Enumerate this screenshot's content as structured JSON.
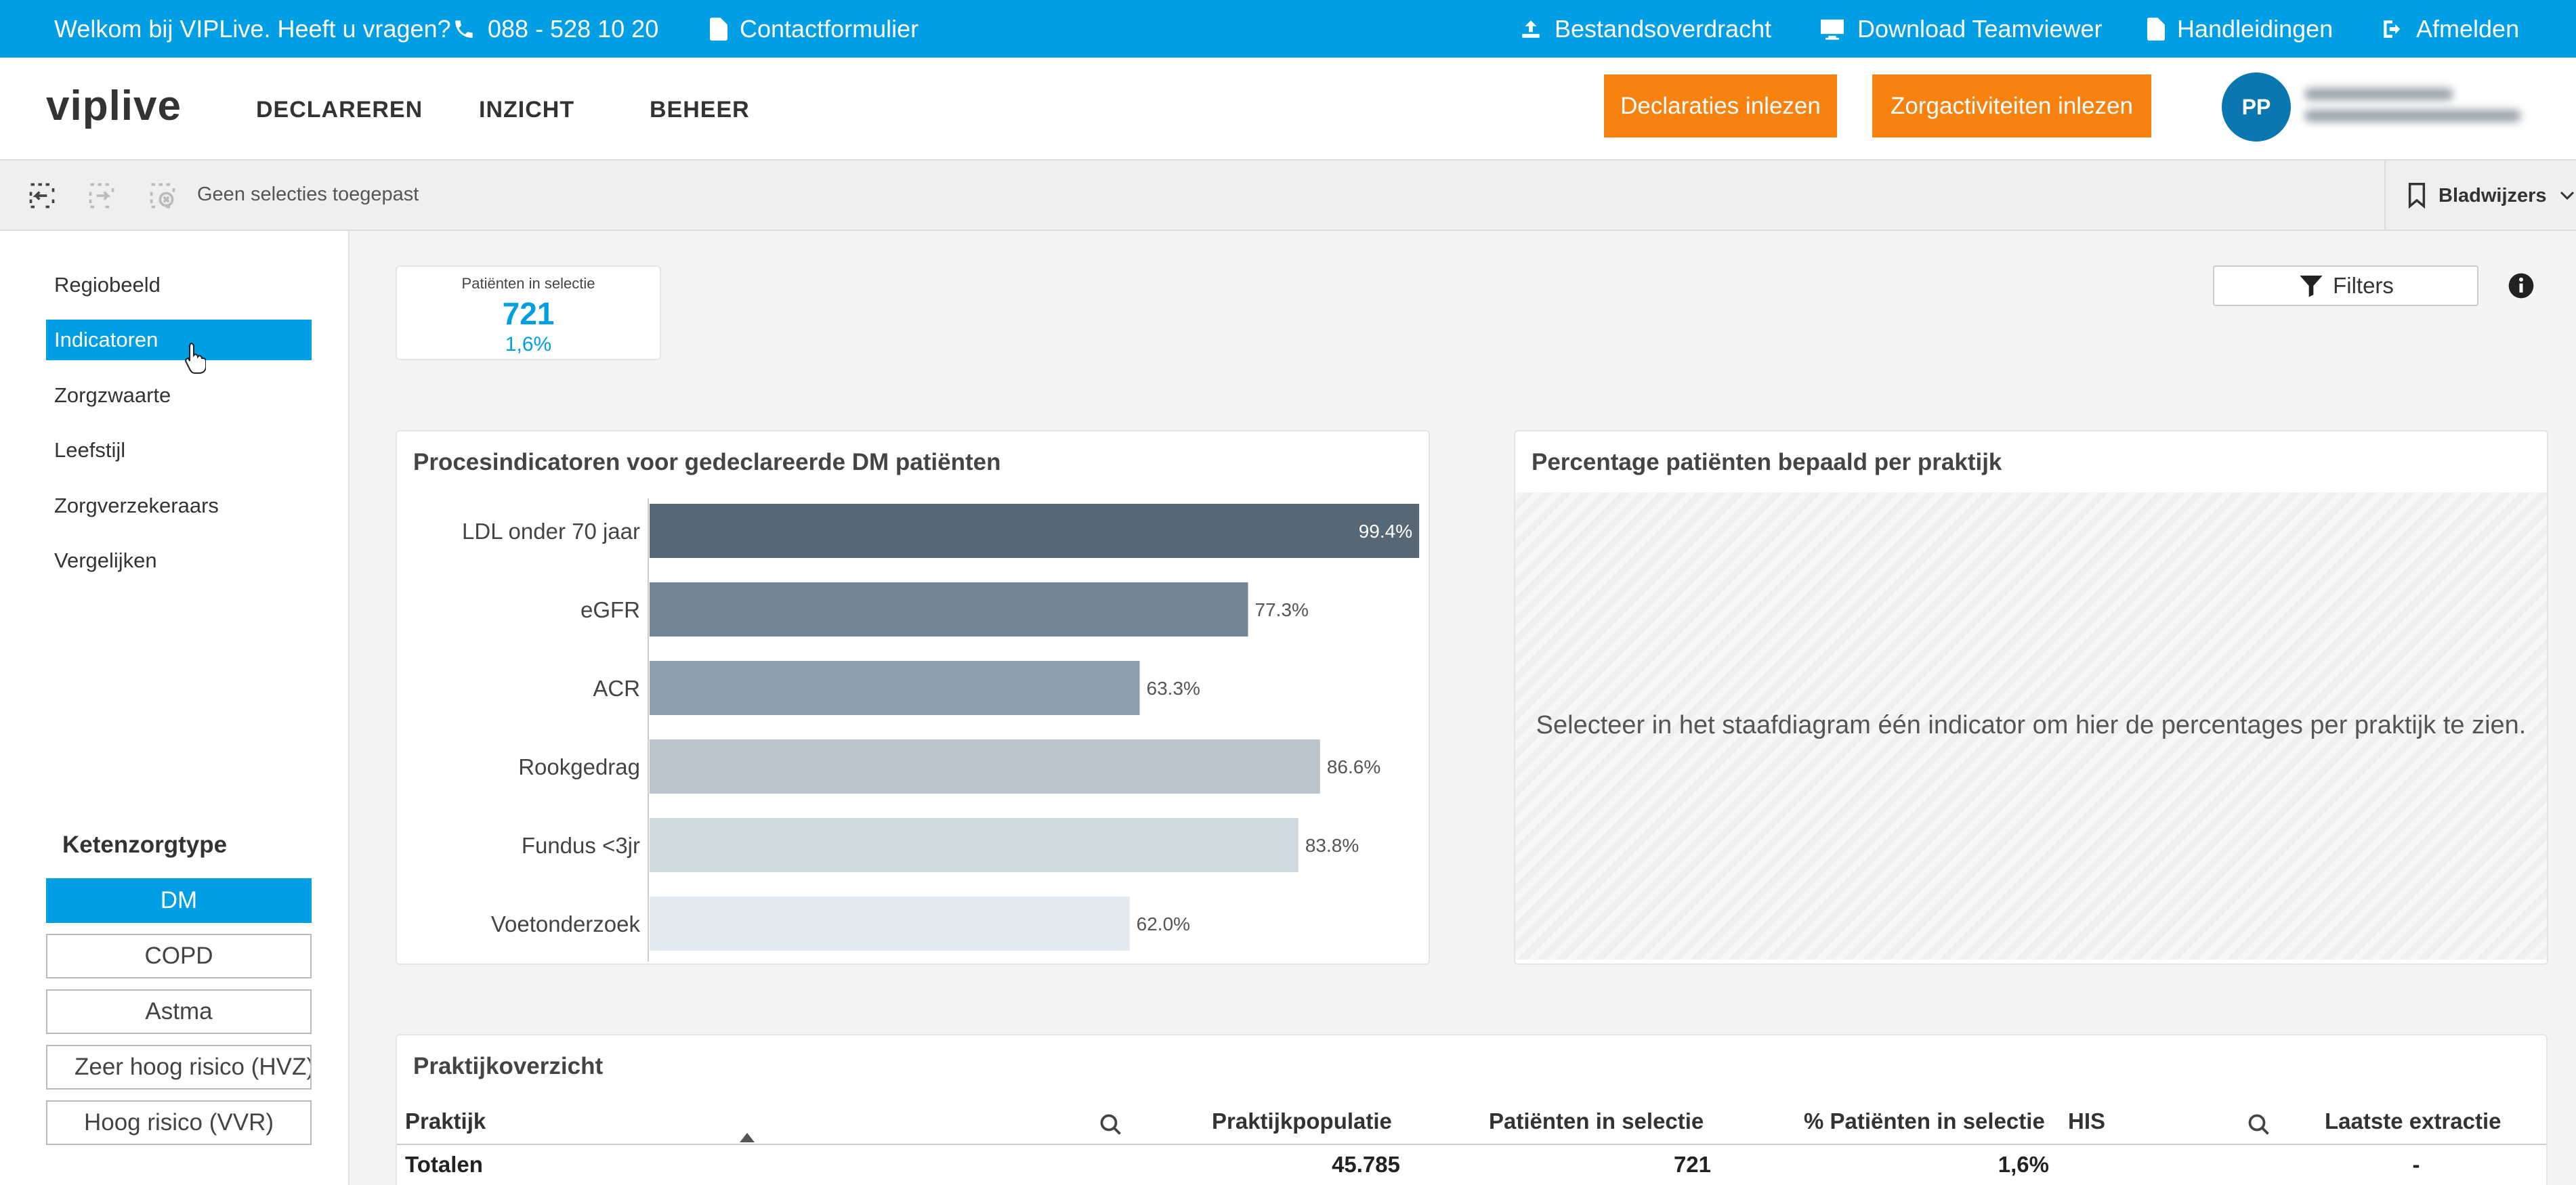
{
  "topbar": {
    "welcome": "Welkom bij VIPLive. Heeft u vragen?",
    "phone": "088 - 528 10 20",
    "contact": "Contactformulier",
    "transfer": "Bestandsoverdracht",
    "teamviewer": "Download Teamviewer",
    "manuals": "Handleidingen",
    "logout": "Afmelden"
  },
  "header": {
    "logo": "viplive",
    "nav": [
      "DECLAREREN",
      "INZICHT",
      "BEHEER"
    ],
    "btn_declaraties": "Declaraties inlezen",
    "btn_zorgactiviteiten": "Zorgactiviteiten inlezen",
    "avatar_initials": "PP"
  },
  "selection_bar": {
    "status": "Geen selecties toegepast",
    "bookmarks": "Bladwijzers"
  },
  "sidebar": {
    "items": [
      "Regiobeeld",
      "Indicatoren",
      "Zorgzwaarte",
      "Leefstijl",
      "Zorgverzekeraars",
      "Vergelijken"
    ],
    "active_index": 1,
    "ketenzorg_title": "Ketenzorgtype",
    "ketenzorg_options": [
      "DM",
      "COPD",
      "Astma",
      "Zeer hoog risico (HVZ)",
      "Hoog risico (VVR)"
    ],
    "ketenzorg_active": 0
  },
  "kpi": {
    "label": "Patiënten in selectie",
    "value": "721",
    "percent": "1,6%"
  },
  "filters_label": "Filters",
  "colors": {
    "accent": "#009ee3",
    "orange": "#f7820f",
    "bars": [
      "#566875",
      "#728696",
      "#8ca0ad",
      "#b9c4cc",
      "#cfd9e0",
      "#e2e9ef"
    ]
  },
  "chart_data": {
    "type": "bar",
    "orientation": "horizontal",
    "title": "Procesindicatoren voor gedeclareerde DM patiënten",
    "categories": [
      "LDL onder 70 jaar",
      "eGFR",
      "ACR",
      "Rookgedrag",
      "Fundus <3jr",
      "Voetonderzoek"
    ],
    "values": [
      99.4,
      77.3,
      63.3,
      86.6,
      83.8,
      62.0
    ],
    "value_labels": [
      "99.4%",
      "77.3%",
      "63.3%",
      "86.6%",
      "83.8%",
      "62.0%"
    ],
    "xlim": [
      0,
      100
    ],
    "grid": false
  },
  "practice_panel": {
    "title": "Percentage patiënten bepaald per praktijk",
    "placeholder": "Selecteer in het staafdiagram één indicator om hier de percentages per praktijk te zien."
  },
  "table": {
    "title": "Praktijkoverzicht",
    "headers": [
      "Praktijk",
      "Praktijkpopulatie",
      "Patiënten in selectie",
      "% Patiënten in selectie",
      "HIS",
      "Laatste extractie"
    ],
    "totals": [
      "Totalen",
      "45.785",
      "721",
      "1,6%",
      "",
      "-"
    ]
  }
}
